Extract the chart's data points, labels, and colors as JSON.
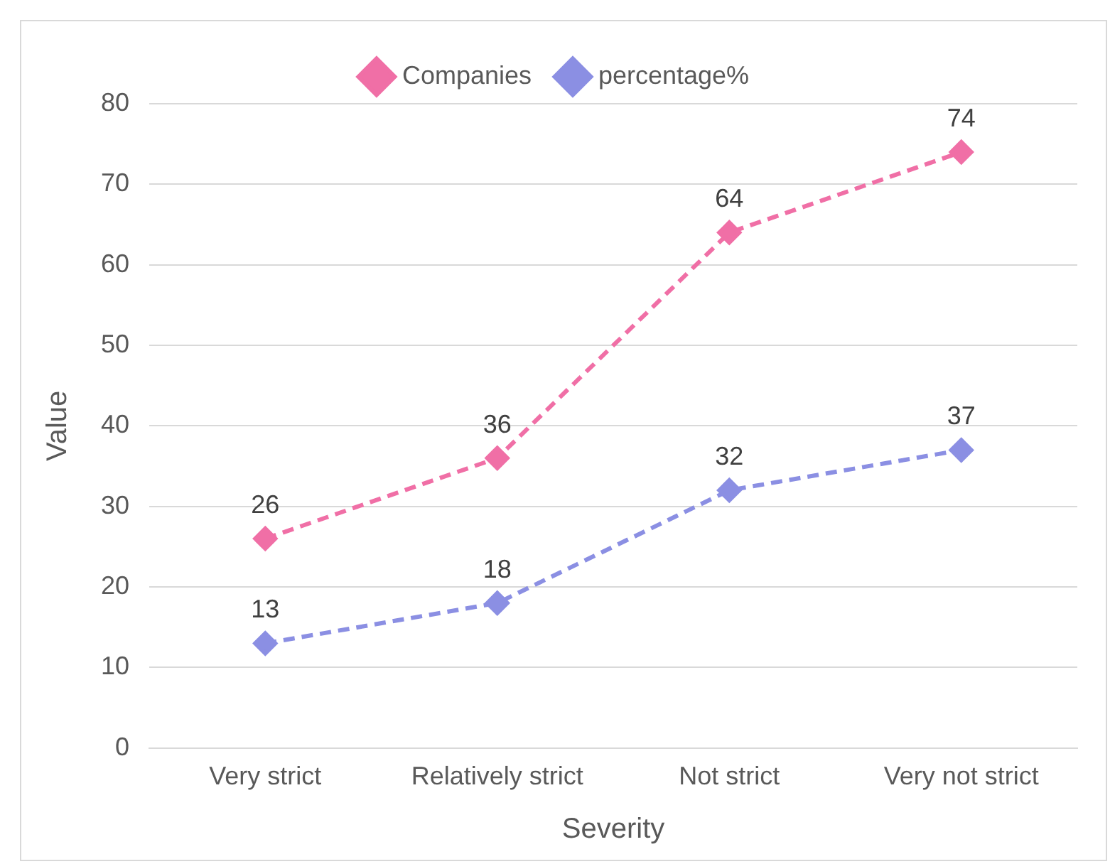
{
  "chart_data": {
    "type": "line",
    "xlabel": "Severity",
    "ylabel": "Value",
    "categories": [
      "Very strict",
      "Relatively strict",
      "Not strict",
      "Very not strict"
    ],
    "series": [
      {
        "name": "Companies",
        "color": "#f06fa6",
        "values": [
          26,
          36,
          64,
          74
        ]
      },
      {
        "name": "percentage%",
        "color": "#8b8fe3",
        "values": [
          13,
          18,
          32,
          37
        ]
      }
    ],
    "ylim": [
      0,
      80
    ],
    "yticks": [
      0,
      10,
      20,
      30,
      40,
      50,
      60,
      70,
      80
    ],
    "grid": "y",
    "legend": "top",
    "marker": "diamond",
    "line_style": "dashed",
    "data_labels": true
  }
}
